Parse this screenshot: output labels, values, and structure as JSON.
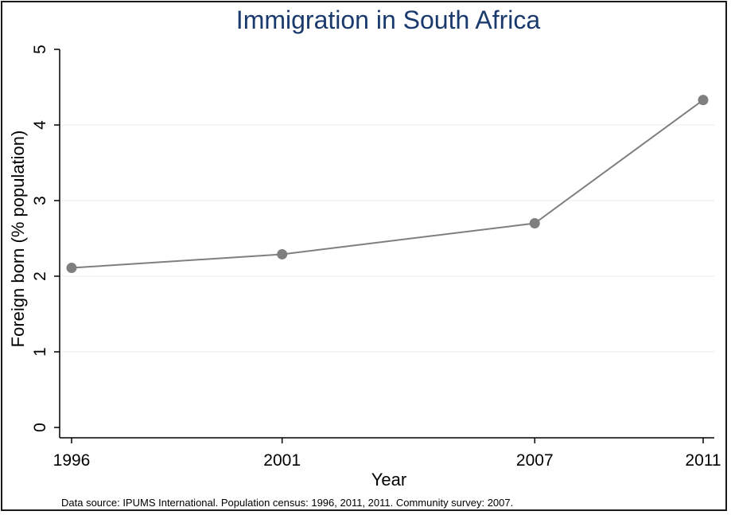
{
  "chart_data": {
    "type": "line",
    "title": "Immigration in South Africa",
    "xlabel": "Year",
    "ylabel": "Foreign born (% population)",
    "x": [
      1996,
      2001,
      2007,
      2011
    ],
    "x_tick_labels": [
      "1996",
      "2001",
      "2007",
      "2011"
    ],
    "y_ticks": [
      0,
      1,
      2,
      3,
      4,
      5
    ],
    "y_tick_labels": [
      "0",
      "1",
      "2",
      "3",
      "4",
      "5"
    ],
    "ylim": [
      0,
      5
    ],
    "xlim": [
      1996,
      2011
    ],
    "series": [
      {
        "values": [
          2.11,
          2.29,
          2.7,
          4.33
        ]
      }
    ],
    "grid": "horizontal",
    "note": "Data source: IPUMS International. Population census: 1996, 2011, 2011. Community survey: 2007.",
    "colors": {
      "line": "#7f7f7f",
      "marker": "#7f7f7f",
      "title": "#1a3a6e",
      "grid": "#e4eef0"
    }
  }
}
